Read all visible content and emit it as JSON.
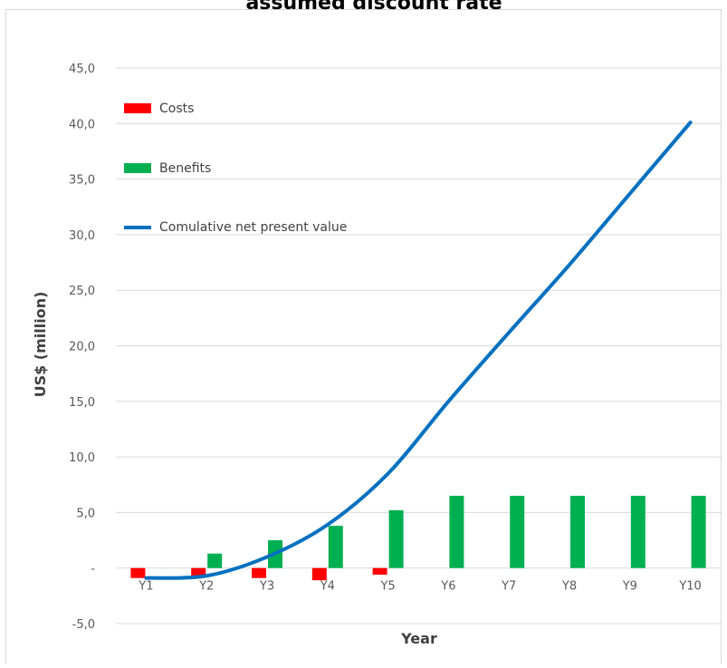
{
  "chart_data": {
    "type": "bar",
    "title": "assumed discount rate",
    "xlabel": "Year",
    "ylabel": "US$ (million)",
    "categories": [
      "Y1",
      "Y2",
      "Y3",
      "Y4",
      "Y5",
      "Y6",
      "Y7",
      "Y8",
      "Y9",
      "Y10"
    ],
    "y_ticks": [
      {
        "value": -5,
        "label": "-5,0"
      },
      {
        "value": 0,
        "label": "-"
      },
      {
        "value": 5,
        "label": "5,0"
      },
      {
        "value": 10,
        "label": "10,0"
      },
      {
        "value": 15,
        "label": "15,0"
      },
      {
        "value": 20,
        "label": "20,0"
      },
      {
        "value": 25,
        "label": "25,0"
      },
      {
        "value": 30,
        "label": "30,0"
      },
      {
        "value": 35,
        "label": "35,0"
      },
      {
        "value": 40,
        "label": "40,0"
      },
      {
        "value": 45,
        "label": "45,0"
      }
    ],
    "ylim": [
      -5,
      45
    ],
    "grid": true,
    "legend_position": "top-left",
    "series": [
      {
        "name": "Costs",
        "type": "bar",
        "color": "#ff0000",
        "values": [
          -0.9,
          -0.8,
          -0.9,
          -1.1,
          -0.6,
          0,
          0,
          0,
          0,
          0
        ]
      },
      {
        "name": "Benefits",
        "type": "bar",
        "color": "#00b050",
        "values": [
          0,
          1.3,
          2.5,
          3.8,
          5.2,
          6.5,
          6.5,
          6.5,
          6.5,
          6.5
        ]
      },
      {
        "name": "Comulative net present value",
        "type": "line",
        "color": "#0070c0",
        "values": [
          -0.9,
          -0.7,
          1.0,
          3.9,
          8.5,
          15.0,
          21.2,
          27.3,
          33.7,
          40.1
        ]
      }
    ]
  }
}
